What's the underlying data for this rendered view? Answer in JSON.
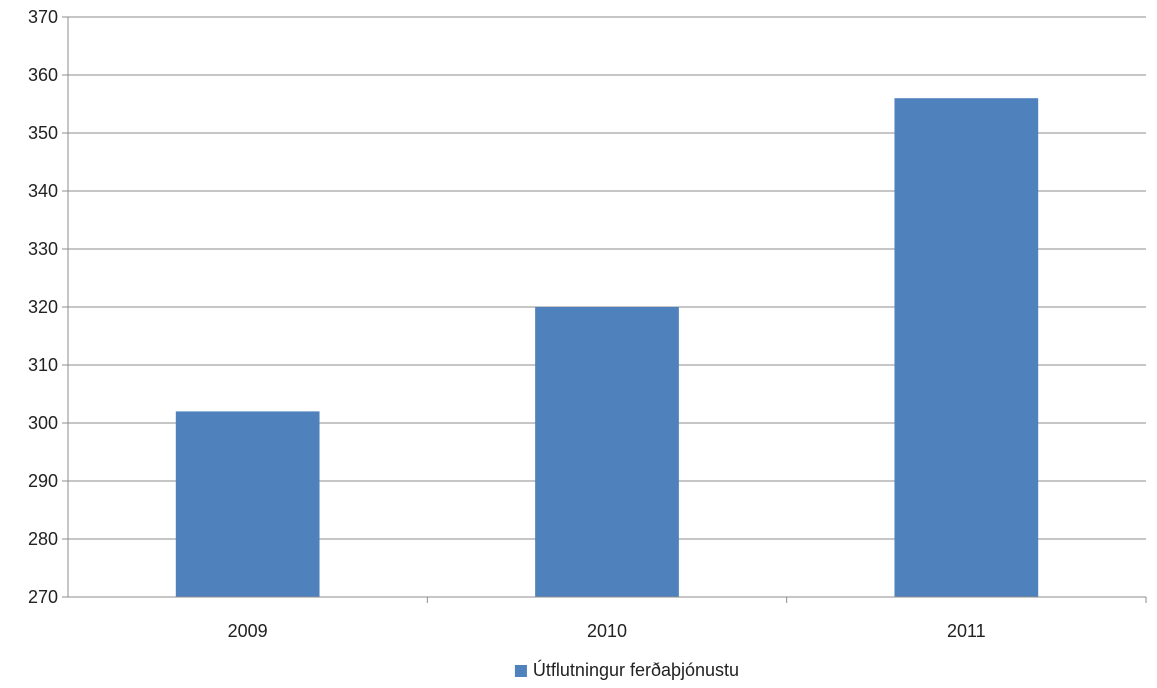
{
  "chart_data": {
    "type": "bar",
    "title": "",
    "xlabel": "",
    "ylabel": "",
    "categories": [
      "2009",
      "2010",
      "2011"
    ],
    "series": [
      {
        "name": "Útflutningur ferðaþjónustu",
        "values": [
          302,
          320,
          356
        ],
        "color": "#4f81bd"
      }
    ],
    "ylim": [
      270,
      370
    ],
    "yticks": [
      270,
      280,
      290,
      300,
      310,
      320,
      330,
      340,
      350,
      360,
      370
    ],
    "grid": true,
    "legend_position": "bottom-center"
  }
}
